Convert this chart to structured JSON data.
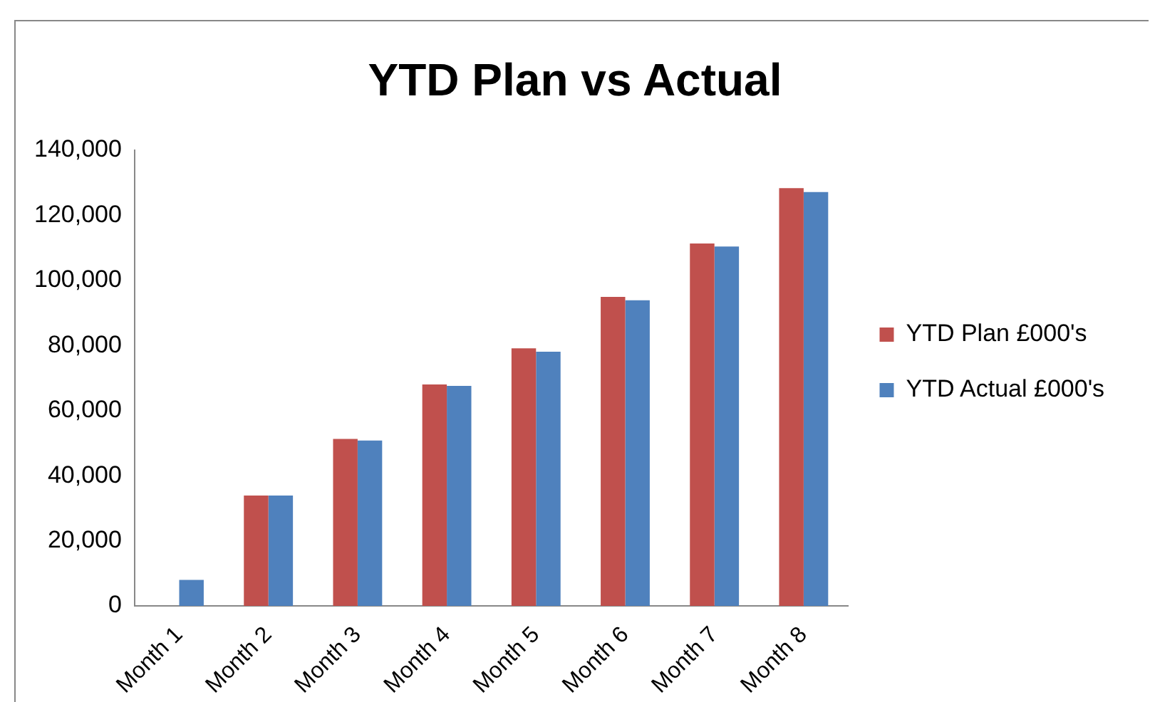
{
  "chart_data": {
    "type": "bar",
    "title": "YTD Plan vs Actual",
    "categories": [
      "Month 1",
      "Month 2",
      "Month 3",
      "Month 4",
      "Month 5",
      "Month 6",
      "Month 7",
      "Month 8"
    ],
    "series": [
      {
        "name": "YTD Plan £000's",
        "color": "#c0504d",
        "values": [
          null,
          33900,
          51300,
          68000,
          79100,
          94900,
          111300,
          128300
        ]
      },
      {
        "name": "YTD Actual £000's",
        "color": "#4f81bd",
        "values": [
          8000,
          33900,
          50800,
          67600,
          78100,
          93900,
          110400,
          127100
        ]
      }
    ],
    "ylim": [
      0,
      140000
    ],
    "yticks": [
      0,
      {
        "value": 20000,
        "label": "20,000"
      },
      {
        "value": 40000,
        "label": "40,000"
      },
      {
        "value": 60000,
        "label": "60,000"
      },
      {
        "value": 80000,
        "label": "80,000"
      },
      {
        "value": 100000,
        "label": "100,000"
      },
      {
        "value": 120000,
        "label": "120,000"
      },
      {
        "value": 140000,
        "label": "140,000"
      }
    ],
    "grid": false,
    "legend": "right"
  }
}
